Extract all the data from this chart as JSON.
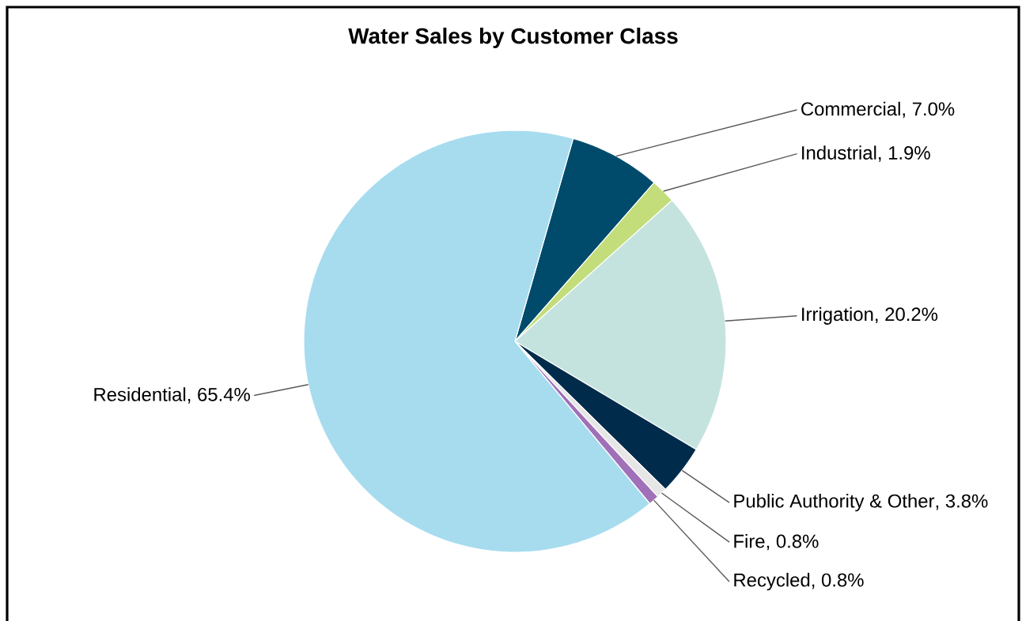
{
  "chart_data": {
    "type": "pie",
    "title": "Water Sales by Customer Class",
    "categories": [
      "Commercial",
      "Industrial",
      "Irrigation",
      "Public Authority & Other",
      "Fire",
      "Recycled",
      "Residential"
    ],
    "values": [
      7.0,
      1.9,
      20.2,
      3.8,
      0.8,
      0.8,
      65.4
    ],
    "colors": [
      "#004b6b",
      "#c3dd7a",
      "#c4e3df",
      "#002b4b",
      "#e6e6e6",
      "#a070b8",
      "#a7dcef"
    ],
    "value_labels": [
      ", 7.0%",
      ", 1.9%",
      ", 20.2%",
      ", 3.8%",
      ", 0.8%",
      ", 0.8%",
      ", 65.4%"
    ]
  }
}
